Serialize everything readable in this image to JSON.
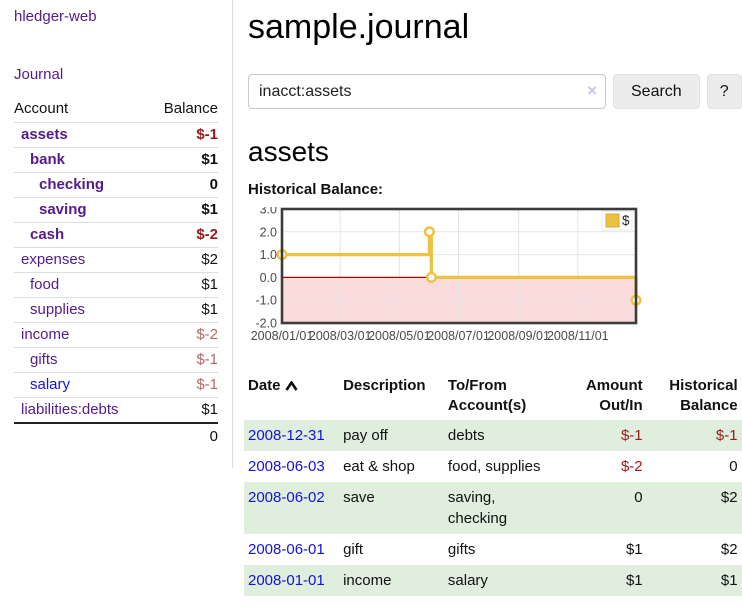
{
  "app": {
    "title": "hledger-web"
  },
  "sidebar": {
    "nav_journal": "Journal",
    "accounts_header": {
      "account": "Account",
      "balance": "Balance"
    },
    "accounts": [
      {
        "name": "assets",
        "balance": "$-1",
        "level": 1,
        "bold": true,
        "tone": "strong",
        "link": "purple"
      },
      {
        "name": "bank",
        "balance": "$1",
        "level": 2,
        "bold": true,
        "tone": "plain",
        "link": "purple"
      },
      {
        "name": "checking",
        "balance": "0",
        "level": 3,
        "bold": true,
        "tone": "plain",
        "link": "purple"
      },
      {
        "name": "saving",
        "balance": "$1",
        "level": 3,
        "bold": true,
        "tone": "plain",
        "link": "purple"
      },
      {
        "name": "cash",
        "balance": "$-2",
        "level": 2,
        "bold": true,
        "tone": "strong",
        "link": "purple"
      },
      {
        "name": "expenses",
        "balance": "$2",
        "level": 1,
        "bold": false,
        "tone": "plain",
        "link": "purple"
      },
      {
        "name": "food",
        "balance": "$1",
        "level": 2,
        "bold": false,
        "tone": "plain",
        "link": "purple"
      },
      {
        "name": "supplies",
        "balance": "$1",
        "level": 2,
        "bold": false,
        "tone": "plain",
        "link": "purple"
      },
      {
        "name": "income",
        "balance": "$-2",
        "level": 1,
        "bold": false,
        "tone": "soft",
        "link": "purple"
      },
      {
        "name": "gifts",
        "balance": "$-1",
        "level": 2,
        "bold": false,
        "tone": "soft",
        "link": "purple"
      },
      {
        "name": "salary",
        "balance": "$-1",
        "level": 2,
        "bold": false,
        "tone": "soft",
        "link": "blue"
      },
      {
        "name": "liabilities:debts",
        "balance": "$1",
        "level": 1,
        "bold": false,
        "tone": "plain",
        "link": "purple"
      }
    ],
    "total": "0"
  },
  "main": {
    "title": "sample.journal",
    "search": {
      "value": "inacct:assets",
      "clear_icon": "×",
      "button": "Search",
      "help": "?"
    },
    "account_heading": "assets",
    "chart_label": "Historical Balance:"
  },
  "chart_data": {
    "type": "line",
    "title": "Historical Balance",
    "step": true,
    "series": [
      {
        "name": "$",
        "color": "#edc240",
        "points": [
          [
            "2008-01-01",
            1
          ],
          [
            "2008-06-01",
            2
          ],
          [
            "2008-06-03",
            0
          ],
          [
            "2008-12-31",
            -1
          ]
        ]
      }
    ],
    "x_ticks": [
      "2008/01/01",
      "2008/03/01",
      "2008/05/01",
      "2008/07/01",
      "2008/09/01",
      "2008/11/01"
    ],
    "y_ticks": [
      "3.0",
      "2.0",
      "1.0",
      "0.0",
      "-1.0",
      "-2.0"
    ],
    "ylim": [
      -2,
      3
    ],
    "grid": true,
    "legend_position": "top-right",
    "legend": [
      "$"
    ],
    "negative_region_color": "#fbdcdc",
    "zero_line_color": "#a40000",
    "grid_color": "#e4e4e4",
    "border_color": "#3c3c3c"
  },
  "table": {
    "columns": [
      {
        "label": "Date",
        "align": "left",
        "width": 100,
        "sorted": "asc"
      },
      {
        "label": "Description",
        "align": "left",
        "width": 106
      },
      {
        "label": "To/From Account(s)",
        "align": "left",
        "width": 118
      },
      {
        "label": "Amount Out/In",
        "align": "right",
        "width": 90
      },
      {
        "label": "Historical Balance",
        "align": "right",
        "width": 97
      }
    ],
    "rows": [
      {
        "date": "2008-12-31",
        "description": "pay off",
        "accounts": "debts",
        "amount": "$-1",
        "amount_neg": true,
        "balance": "$-1",
        "balance_neg": true
      },
      {
        "date": "2008-06-03",
        "description": "eat & shop",
        "accounts": "food, supplies",
        "amount": "$-2",
        "amount_neg": true,
        "balance": "0",
        "balance_neg": false
      },
      {
        "date": "2008-06-02",
        "description": "save",
        "accounts": "saving, checking",
        "amount": "0",
        "amount_neg": false,
        "balance": "$2",
        "balance_neg": false
      },
      {
        "date": "2008-06-01",
        "description": "gift",
        "accounts": "gifts",
        "amount": "$1",
        "amount_neg": false,
        "balance": "$2",
        "balance_neg": false
      },
      {
        "date": "2008-01-01",
        "description": "income",
        "accounts": "salary",
        "amount": "$1",
        "amount_neg": false,
        "balance": "$1",
        "balance_neg": false
      }
    ]
  }
}
